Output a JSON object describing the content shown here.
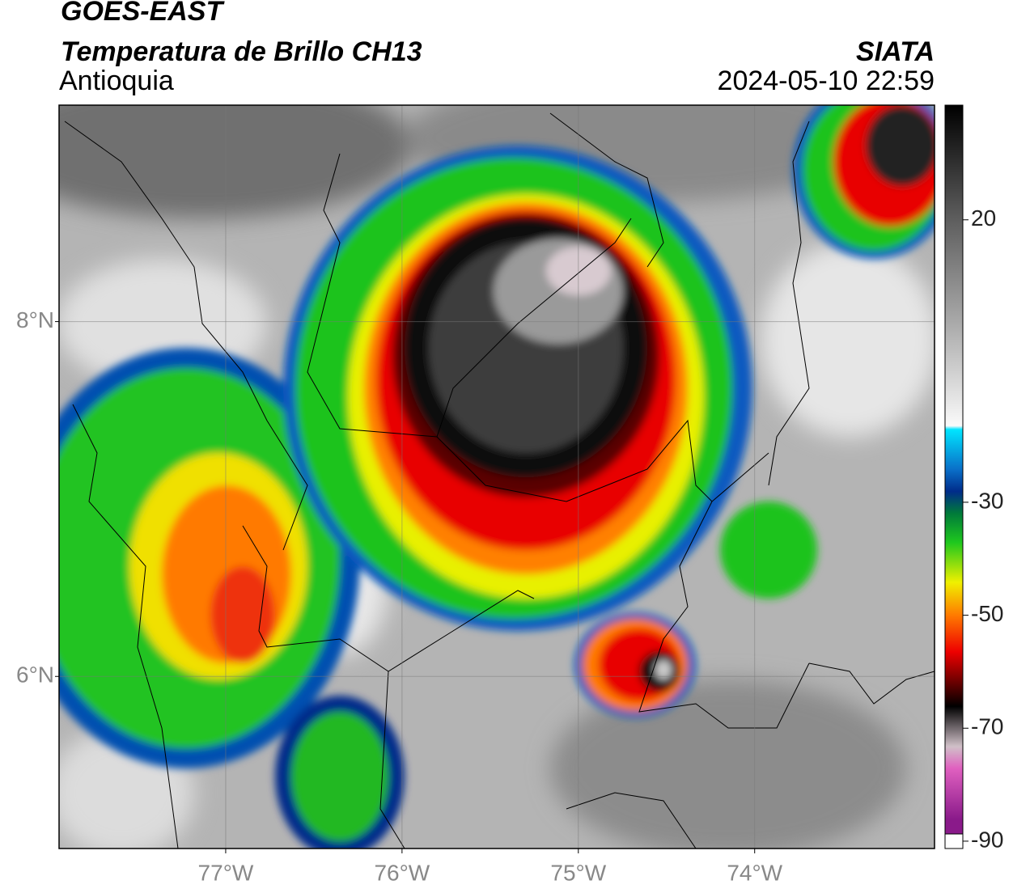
{
  "header": {
    "title": "GOES-EAST",
    "subtitle": "Temperatura de Brillo CH13",
    "region": "Antioquia",
    "source": "SIATA",
    "datetime": "2024-05-10 22:59"
  },
  "map": {
    "xlim": [
      -77.945,
      -72.98
    ],
    "ylim": [
      5.03,
      9.22
    ],
    "xticks": [
      {
        "value": -77,
        "label": "77°W"
      },
      {
        "value": -76,
        "label": "76°W"
      },
      {
        "value": -75,
        "label": "75°W"
      },
      {
        "value": -74,
        "label": "74°W"
      }
    ],
    "yticks": [
      {
        "value": 8,
        "label": "8°N"
      },
      {
        "value": 6,
        "label": "6°N"
      }
    ],
    "grid": true
  },
  "colorbar": {
    "lim": [
      -91.3,
      40.3
    ],
    "ticks": [
      20,
      -30,
      -50,
      -70,
      -90
    ]
  }
}
